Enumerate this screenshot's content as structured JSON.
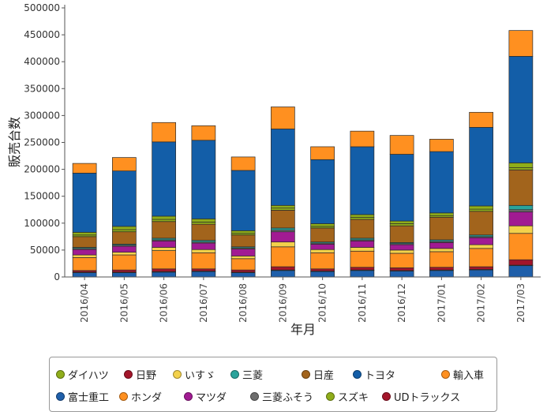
{
  "chart_data": {
    "type": "bar",
    "stacked": true,
    "xlabel": "年月",
    "ylabel": "販売台数",
    "ylim": [
      0,
      500000
    ],
    "yticks": [
      0,
      50000,
      100000,
      150000,
      200000,
      250000,
      300000,
      350000,
      400000,
      450000,
      500000
    ],
    "categories": [
      "2016/04",
      "2016/05",
      "2016/06",
      "2016/07",
      "2016/08",
      "2016/09",
      "2016/10",
      "2016/11",
      "2016/12",
      "2017/01",
      "2017/02",
      "2017/03"
    ],
    "series": [
      {
        "name": "富士重工",
        "color": "#1f5faa",
        "values": [
          8000,
          8000,
          9000,
          10000,
          8000,
          12000,
          10000,
          12000,
          11000,
          12000,
          13000,
          21000
        ]
      },
      {
        "name": "UDトラックス",
        "color": "#a3152a",
        "values": [
          1000,
          1000,
          1000,
          1000,
          1000,
          1000,
          1000,
          1000,
          1000,
          1000,
          1000,
          1000
        ]
      },
      {
        "name": "日野",
        "color": "#a3152a",
        "values": [
          3000,
          4000,
          5000,
          4000,
          4000,
          6000,
          4000,
          5000,
          5000,
          5000,
          5000,
          10000
        ]
      },
      {
        "name": "ホンダ",
        "color": "#ff9020",
        "values": [
          24000,
          28000,
          34000,
          30000,
          21000,
          37000,
          30000,
          30000,
          27000,
          29000,
          34000,
          49000
        ]
      },
      {
        "name": "いすゞ",
        "color": "#f3d14b",
        "values": [
          5000,
          5000,
          6000,
          6000,
          5000,
          9000,
          6000,
          7000,
          6000,
          6000,
          7000,
          14000
        ]
      },
      {
        "name": "マツダ",
        "color": "#a11b92",
        "values": [
          10000,
          11000,
          12000,
          12000,
          13000,
          19000,
          10000,
          12000,
          10000,
          11000,
          13000,
          26000
        ]
      },
      {
        "name": "三菱ふそう",
        "color": "#6d6d6d",
        "values": [
          2000,
          2000,
          2000,
          2000,
          2000,
          3000,
          2000,
          2000,
          2000,
          2000,
          2000,
          4000
        ]
      },
      {
        "name": "三菱",
        "color": "#2aa39b",
        "values": [
          2000,
          2000,
          3000,
          3000,
          2000,
          4000,
          2000,
          3000,
          2000,
          3000,
          3000,
          8000
        ]
      },
      {
        "name": "日産",
        "color": "#a2641c",
        "values": [
          20000,
          23000,
          31000,
          30000,
          22000,
          33000,
          26000,
          35000,
          31000,
          42000,
          44000,
          66000
        ]
      },
      {
        "name": "スズキ",
        "color": "#8fad1a",
        "values": [
          3000,
          4000,
          4000,
          4000,
          3000,
          4000,
          3000,
          4000,
          4000,
          3000,
          4000,
          4000
        ]
      },
      {
        "name": "ダイハツ",
        "color": "#8fad1a",
        "values": [
          5000,
          6000,
          6000,
          6000,
          5000,
          5000,
          5000,
          5000,
          5000,
          5000,
          6000,
          9000
        ]
      },
      {
        "name": "トヨタ",
        "color": "#135ea8",
        "values": [
          110000,
          103000,
          138000,
          146000,
          112000,
          142000,
          119000,
          126000,
          124000,
          114000,
          146000,
          198000
        ]
      },
      {
        "name": "輸入車",
        "color": "#ff9020",
        "values": [
          18000,
          25000,
          36000,
          27000,
          25000,
          41000,
          24000,
          29000,
          35000,
          23000,
          28000,
          48000
        ]
      }
    ],
    "legend": {
      "placement": "bottom",
      "rows": [
        [
          "ダイハツ",
          "日野",
          "いすゞ",
          "三菱",
          "日産",
          "トヨタ",
          "輸入車"
        ],
        [
          "富士重工",
          "ホンダ",
          "マツダ",
          "三菱ふそう",
          "スズキ",
          "UDトラックス"
        ]
      ]
    }
  }
}
